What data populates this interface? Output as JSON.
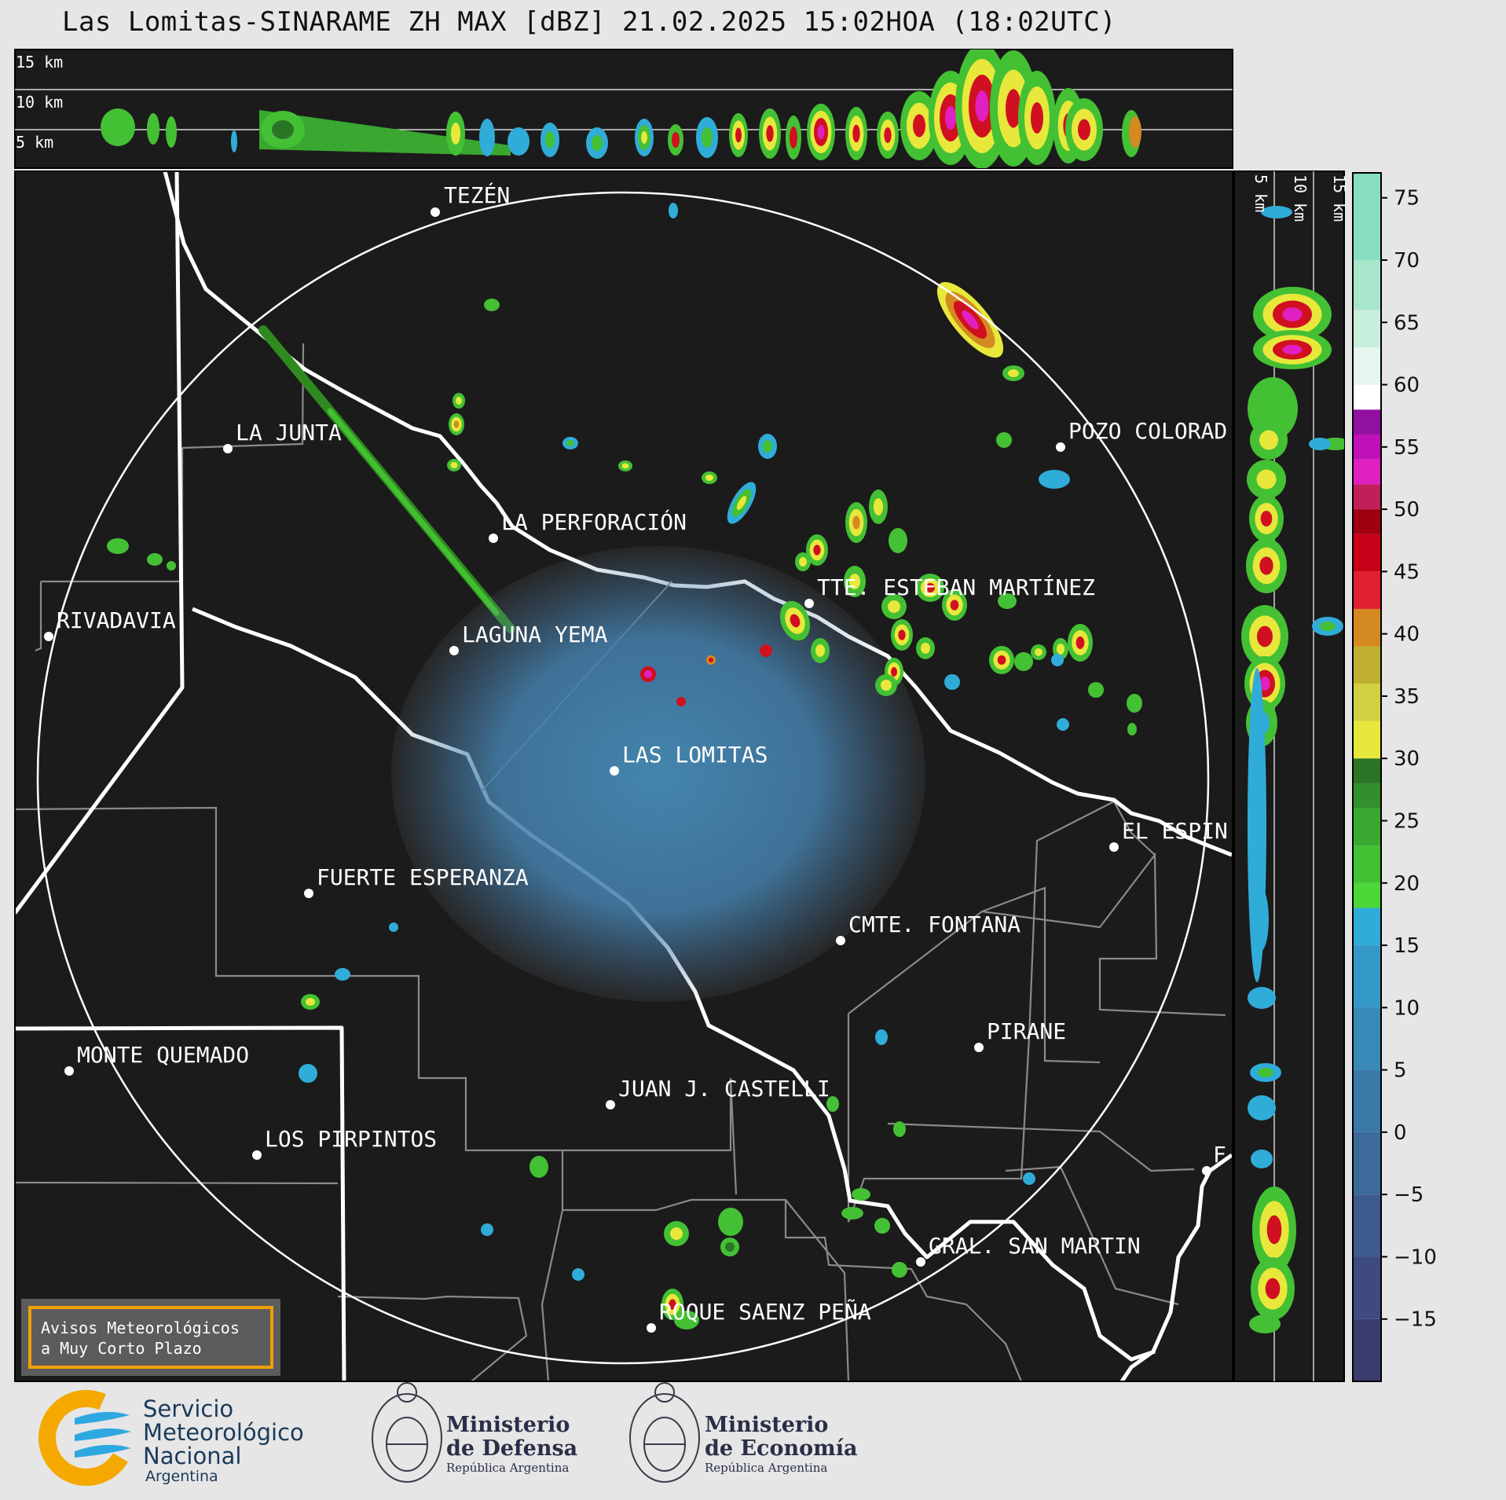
{
  "title": "Las Lomitas-SINARAME ZH MAX [dBZ] 21.02.2025 15:02HOA (18:02UTC)",
  "top_profile": {
    "altitude_labels": [
      "15 km",
      "10 km",
      "5 km"
    ]
  },
  "side_profile": {
    "altitude_labels": [
      "5 km",
      "10 km",
      "15 km"
    ]
  },
  "places": [
    {
      "name": "TEZÉN"
    },
    {
      "name": "LA JUNTA"
    },
    {
      "name": "POZO COLORAD"
    },
    {
      "name": "LA PERFORACIÓN"
    },
    {
      "name": "RIVADAVIA"
    },
    {
      "name": "TTE. ESTEBAN MARTÍNEZ"
    },
    {
      "name": "LAGUNA YEMA"
    },
    {
      "name": "LAS LOMITAS"
    },
    {
      "name": "EL ESPIN"
    },
    {
      "name": "FUERTE ESPERANZA"
    },
    {
      "name": "CMTE. FONTANA"
    },
    {
      "name": "PIRANE"
    },
    {
      "name": "MONTE QUEMADO"
    },
    {
      "name": "JUAN J. CASTELLI"
    },
    {
      "name": "LOS PIRPINTOS"
    },
    {
      "name": "GRAL. SAN MARTIN"
    },
    {
      "name": "ROQUE SAENZ PEÑA"
    },
    {
      "name": "F"
    }
  ],
  "colorbar": {
    "unit": "dBZ",
    "ticks": [
      "75",
      "70",
      "65",
      "60",
      "55",
      "50",
      "45",
      "40",
      "35",
      "30",
      "25",
      "20",
      "15",
      "10",
      "5",
      "0",
      "−5",
      "−10",
      "−15"
    ],
    "tick_values": [
      75,
      70,
      65,
      60,
      55,
      50,
      45,
      40,
      35,
      30,
      25,
      20,
      15,
      10,
      5,
      0,
      -5,
      -10,
      -15
    ],
    "range": [
      -20,
      77
    ],
    "bands": [
      {
        "from": -20,
        "to": -15,
        "color": "#3a3c6e"
      },
      {
        "from": -15,
        "to": -10,
        "color": "#3e4a80"
      },
      {
        "from": -10,
        "to": -5,
        "color": "#3e5a8e"
      },
      {
        "from": -5,
        "to": 0,
        "color": "#3c6a9a"
      },
      {
        "from": 0,
        "to": 5,
        "color": "#3a78a8"
      },
      {
        "from": 5,
        "to": 10,
        "color": "#3888b8"
      },
      {
        "from": 10,
        "to": 15,
        "color": "#3498c6"
      },
      {
        "from": 15,
        "to": 18,
        "color": "#30acd8"
      },
      {
        "from": 18,
        "to": 20,
        "color": "#4cd838"
      },
      {
        "from": 20,
        "to": 23,
        "color": "#44c034"
      },
      {
        "from": 23,
        "to": 26,
        "color": "#3aa830"
      },
      {
        "from": 26,
        "to": 28,
        "color": "#32902c"
      },
      {
        "from": 28,
        "to": 30,
        "color": "#2a7426"
      },
      {
        "from": 30,
        "to": 33,
        "color": "#e8e83c"
      },
      {
        "from": 33,
        "to": 36,
        "color": "#d2d040"
      },
      {
        "from": 36,
        "to": 39,
        "color": "#c0b030"
      },
      {
        "from": 39,
        "to": 42,
        "color": "#d48a20"
      },
      {
        "from": 42,
        "to": 45,
        "color": "#e02030"
      },
      {
        "from": 45,
        "to": 48,
        "color": "#c80018"
      },
      {
        "from": 48,
        "to": 50,
        "color": "#a00010"
      },
      {
        "from": 50,
        "to": 52,
        "color": "#c0205a"
      },
      {
        "from": 52,
        "to": 54,
        "color": "#e020c0"
      },
      {
        "from": 54,
        "to": 56,
        "color": "#c010b8"
      },
      {
        "from": 56,
        "to": 58,
        "color": "#9010a0"
      },
      {
        "from": 58,
        "to": 60,
        "color": "#ffffff"
      },
      {
        "from": 60,
        "to": 63,
        "color": "#e4f6ee"
      },
      {
        "from": 63,
        "to": 66,
        "color": "#c8eedc"
      },
      {
        "from": 66,
        "to": 70,
        "color": "#a8e6cc"
      },
      {
        "from": 70,
        "to": 77,
        "color": "#88dcc0"
      }
    ]
  },
  "warning_box": {
    "line1": "Avisos Meteorológicos",
    "line2": "a Muy Corto Plazo"
  },
  "logos": {
    "smn": {
      "line1": "Servicio",
      "line2": "Meteorológico",
      "line3": "Nacional",
      "line4": "Argentina"
    },
    "defensa": {
      "line1": "Ministerio",
      "line2": "de Defensa",
      "line3": "República Argentina"
    },
    "economia": {
      "line1": "Ministerio",
      "line2": "de Economía",
      "line3": "República Argentina"
    }
  },
  "colors": {
    "map_background": "#1b1b1b",
    "page_background": "#e6e6e6",
    "range_ring": "#ffffff",
    "border_primary": "#ffffff",
    "border_secondary": "#8a8a8a",
    "warning_border": "#f0a000",
    "smn_orange": "#f5a800",
    "smn_blue": "#2ea8e0"
  }
}
